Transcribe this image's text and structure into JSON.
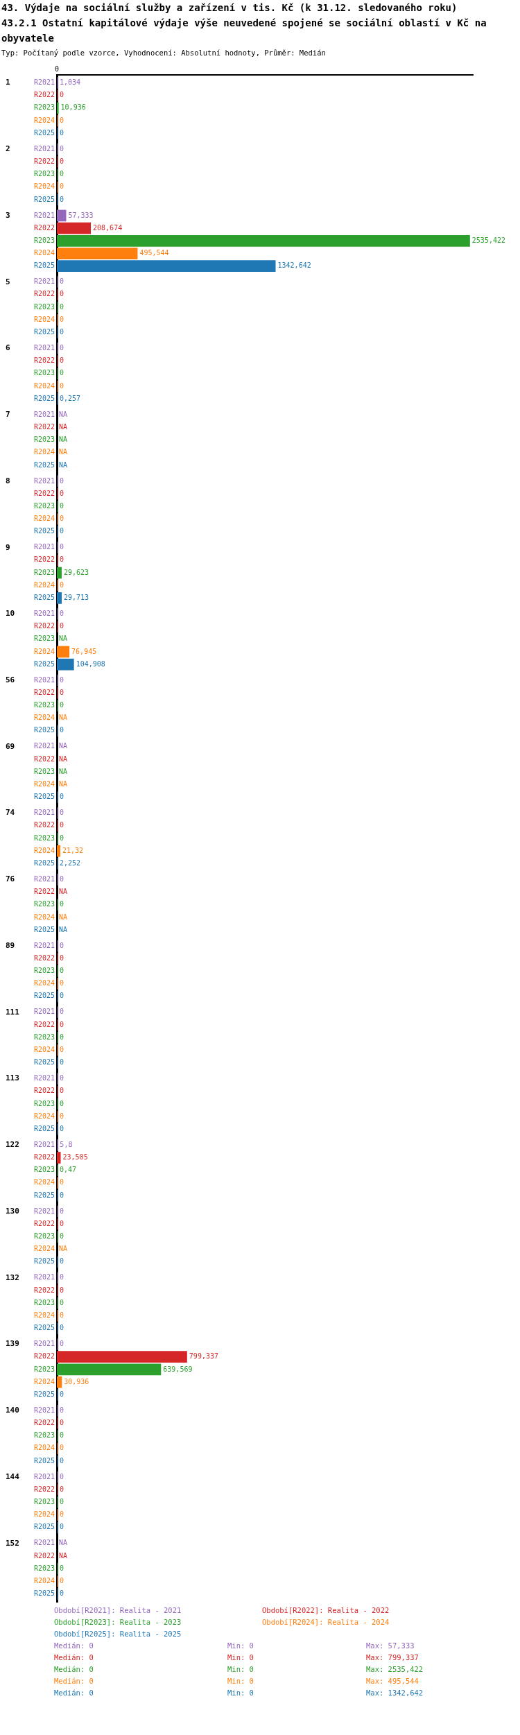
{
  "chart_data": {
    "type": "bar",
    "orientation": "horizontal",
    "title": "43. Výdaje na sociální služby a zařízení v tis. Kč (k 31.12. sledovaného roku)",
    "subtitle": "43.2.1 Ostatní kapitálové výdaje výše neuvedené spojené se sociální oblastí v Kč na obyvatele",
    "categories": [
      "1",
      "2",
      "3",
      "5",
      "6",
      "7",
      "8",
      "9",
      "10",
      "56",
      "69",
      "74",
      "76",
      "89",
      "111",
      "113",
      "122",
      "130",
      "132",
      "139",
      "140",
      "144",
      "152"
    ],
    "series": [
      {
        "name": "Období[R2021]: Realita - 2021",
        "color": "#9467bd",
        "values": [
          1.034,
          0,
          57.333,
          0,
          0,
          null,
          0,
          0,
          0,
          0,
          null,
          0,
          0,
          0,
          0,
          0,
          5.8,
          0,
          0,
          0,
          0,
          0,
          null
        ],
        "value_labels": [
          "1,034",
          "0",
          "57,333",
          "0",
          "0",
          "NA",
          "0",
          "0",
          "0",
          "0",
          "NA",
          "0",
          "0",
          "0",
          "0",
          "0",
          "5,8",
          "0",
          "0",
          "0",
          "0",
          "0",
          "NA"
        ]
      },
      {
        "name": "Období[R2022]: Realita - 2022",
        "color": "#d62728",
        "values": [
          0,
          0,
          208.674,
          0,
          0,
          null,
          0,
          0,
          0,
          0,
          null,
          0,
          null,
          0,
          0,
          0,
          23.505,
          0,
          0,
          799.337,
          0,
          0,
          null
        ],
        "value_labels": [
          "0",
          "0",
          "208,674",
          "0",
          "0",
          "NA",
          "0",
          "0",
          "0",
          "0",
          "NA",
          "0",
          "NA",
          "0",
          "0",
          "0",
          "23,505",
          "0",
          "0",
          "799,337",
          "0",
          "0",
          "NA"
        ]
      },
      {
        "name": "Období[R2023]: Realita - 2023",
        "color": "#2ca02c",
        "values": [
          10.936,
          0,
          2535.422,
          0,
          0,
          null,
          0,
          29.623,
          null,
          0,
          null,
          0,
          0,
          0,
          0,
          0,
          0.47,
          0,
          0,
          639.569,
          0,
          0,
          0
        ],
        "value_labels": [
          "10,936",
          "0",
          "2535,422",
          "0",
          "0",
          "NA",
          "0",
          "29,623",
          "NA",
          "0",
          "NA",
          "0",
          "0",
          "0",
          "0",
          "0",
          "0,47",
          "0",
          "0",
          "639,569",
          "0",
          "0",
          "0"
        ]
      },
      {
        "name": "Období[R2024]: Realita - 2024",
        "color": "#ff7f0e",
        "values": [
          0,
          0,
          495.544,
          0,
          0,
          null,
          0,
          0,
          76.945,
          null,
          null,
          21.32,
          null,
          0,
          0,
          0,
          0,
          null,
          0,
          30.936,
          0,
          0,
          0
        ],
        "value_labels": [
          "0",
          "0",
          "495,544",
          "0",
          "0",
          "NA",
          "0",
          "0",
          "76,945",
          "NA",
          "NA",
          "21,32",
          "NA",
          "0",
          "0",
          "0",
          "0",
          "NA",
          "0",
          "30,936",
          "0",
          "0",
          "0"
        ]
      },
      {
        "name": "Období[R2025]: Realita - 2025",
        "color": "#1f77b4",
        "values": [
          0,
          0,
          1342.642,
          0,
          0.257,
          null,
          0,
          29.713,
          104.908,
          0,
          0,
          2.252,
          null,
          0,
          0,
          0,
          0,
          0,
          0,
          0,
          0,
          0,
          0
        ],
        "value_labels": [
          "0",
          "0",
          "1342,642",
          "0",
          "0,257",
          "NA",
          "0",
          "29,713",
          "104,908",
          "0",
          "0",
          "2,252",
          "NA",
          "0",
          "0",
          "0",
          "0",
          "0",
          "0",
          "0",
          "0",
          "0",
          "0"
        ]
      }
    ],
    "legend": "bottom",
    "annotations": [
      "Typ: Počítaný podle vzorce, Vyhodnocení: Absolutní hodnoty, Průměr: Medián",
      "R2021",
      "R2022",
      "R2023",
      "R2024",
      "R2025",
      "Medián: 0",
      "Min: 0",
      "Max: 57,333",
      "Medián: 0",
      "Min: 0",
      "Max: 799,337",
      "Medián: 0",
      "Min: 0",
      "Max: 2535,422",
      "Medián: 0",
      "Min: 0",
      "Max: 495,544",
      "Medián: 0",
      "Min: 0",
      "Max: 1342,642",
      "0"
    ]
  }
}
